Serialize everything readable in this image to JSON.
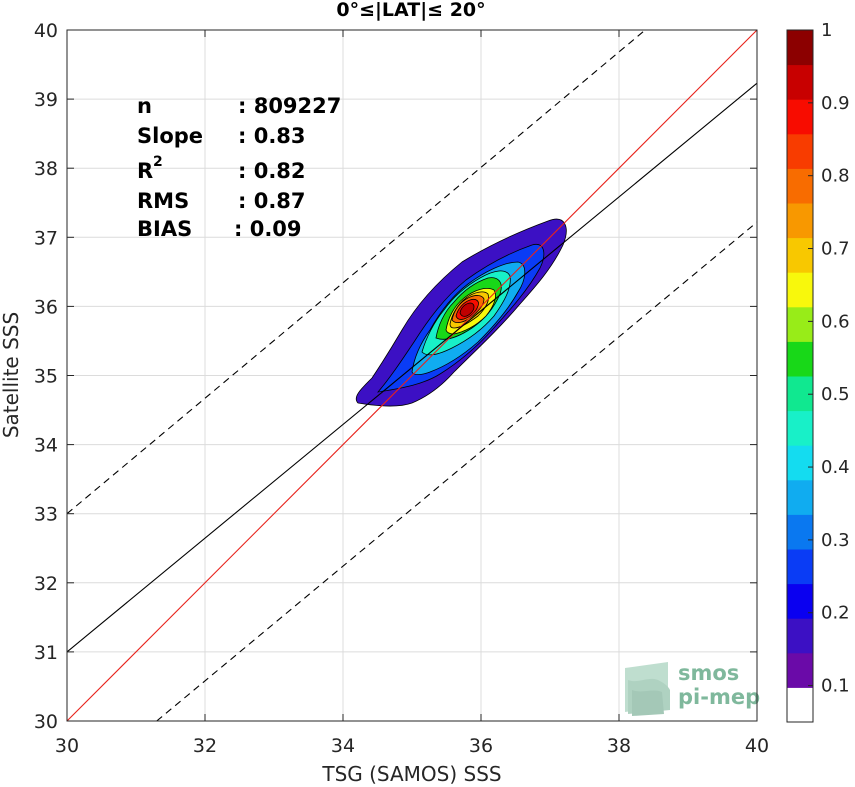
{
  "chart_data": {
    "type": "density-contour",
    "title": "0°≤|LAT|≤ 20°",
    "xlabel": "TSG (SAMOS) SSS",
    "ylabel": "Satellite SSS",
    "xlim": [
      30,
      40
    ],
    "ylim": [
      30,
      40
    ],
    "xticks": [
      "30",
      "32",
      "34",
      "36",
      "38",
      "40"
    ],
    "yticks": [
      "30",
      "31",
      "32",
      "33",
      "34",
      "35",
      "36",
      "37",
      "38",
      "39",
      "40"
    ],
    "grid": true,
    "stats": {
      "n_label": "n",
      "n_value": ": 809227",
      "slope_label": "Slope",
      "slope_value": ": 0.83",
      "r2_label": "R",
      "r2_sup": "2",
      "r2_value": ": 0.82",
      "rms_label": "RMS",
      "rms_value": ": 0.87",
      "bias_label": "BIAS",
      "bias_value": ": 0.09"
    },
    "lines": [
      {
        "name": "identity",
        "color": "#e8221b",
        "style": "solid",
        "slope": 1,
        "intercept": 0
      },
      {
        "name": "regression",
        "color": "#000000",
        "style": "solid",
        "points": [
          [
            30,
            31.0
          ],
          [
            40,
            39.23
          ]
        ]
      },
      {
        "name": "upper-bound",
        "color": "#000000",
        "style": "dashed",
        "points": [
          [
            30,
            33.0
          ],
          [
            38.38,
            40
          ]
        ]
      },
      {
        "name": "lower-bound",
        "color": "#000000",
        "style": "dashed",
        "points": [
          [
            31.3,
            30
          ],
          [
            40,
            37.22
          ]
        ]
      }
    ],
    "density_center": [
      35.85,
      35.95
    ],
    "colorbar": {
      "ticks": [
        "0.1",
        "0.2",
        "0.3",
        "0.4",
        "0.5",
        "0.6",
        "0.7",
        "0.8",
        "0.9",
        "1"
      ],
      "colors": [
        "#ffffff",
        "#6a0aa8",
        "#3c10c4",
        "#0a00f0",
        "#0a3cf5",
        "#0a78f0",
        "#10acf0",
        "#14dcf0",
        "#18f0c8",
        "#10e890",
        "#18d818",
        "#98ec18",
        "#f8f80c",
        "#f8c800",
        "#f89800",
        "#f86c00",
        "#f83c00",
        "#f80c00",
        "#c80000",
        "#8c0000"
      ]
    },
    "watermark": {
      "line1": "smos",
      "line2": "pi-mep"
    }
  }
}
